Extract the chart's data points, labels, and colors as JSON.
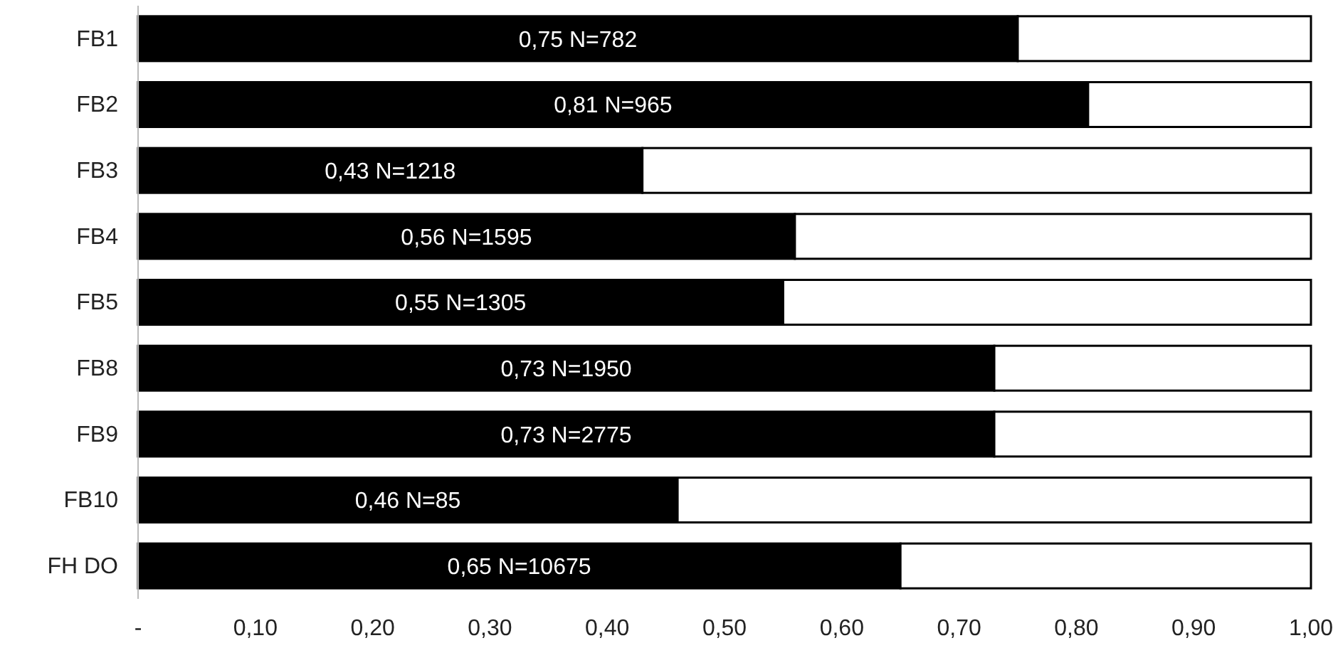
{
  "chart_data": {
    "type": "bar",
    "orientation": "horizontal",
    "stacked": true,
    "categories": [
      "FB1",
      "FB2",
      "FB3",
      "FB4",
      "FB5",
      "FB8",
      "FB9",
      "FB10",
      "FH DO"
    ],
    "series": [
      {
        "color": "#000000",
        "values": [
          0.75,
          0.81,
          0.43,
          0.56,
          0.55,
          0.73,
          0.73,
          0.46,
          0.65
        ],
        "value_labels": [
          "0,75 N=782",
          "0,81 N=965",
          "0,43 N=1218",
          "0,56 N=1595",
          "0,55 N=1305",
          "0,73 N=1950",
          "0,73 N=2775",
          "0,46 N=85",
          "0,65 N=10675"
        ]
      },
      {
        "color": "#ffffff",
        "values": [
          0.25,
          0.19,
          0.57,
          0.44,
          0.45,
          0.27,
          0.27,
          0.54,
          0.35
        ]
      }
    ],
    "xlim": [
      0,
      1
    ],
    "xticks": [
      {
        "value": 0,
        "label": "-"
      },
      {
        "value": 0.1,
        "label": "0,10"
      },
      {
        "value": 0.2,
        "label": "0,20"
      },
      {
        "value": 0.3,
        "label": "0,30"
      },
      {
        "value": 0.4,
        "label": "0,40"
      },
      {
        "value": 0.5,
        "label": "0,50"
      },
      {
        "value": 0.6,
        "label": "0,60"
      },
      {
        "value": 0.7,
        "label": "0,70"
      },
      {
        "value": 0.8,
        "label": "0,80"
      },
      {
        "value": 0.9,
        "label": "0,90"
      },
      {
        "value": 1,
        "label": "1,00"
      }
    ]
  }
}
